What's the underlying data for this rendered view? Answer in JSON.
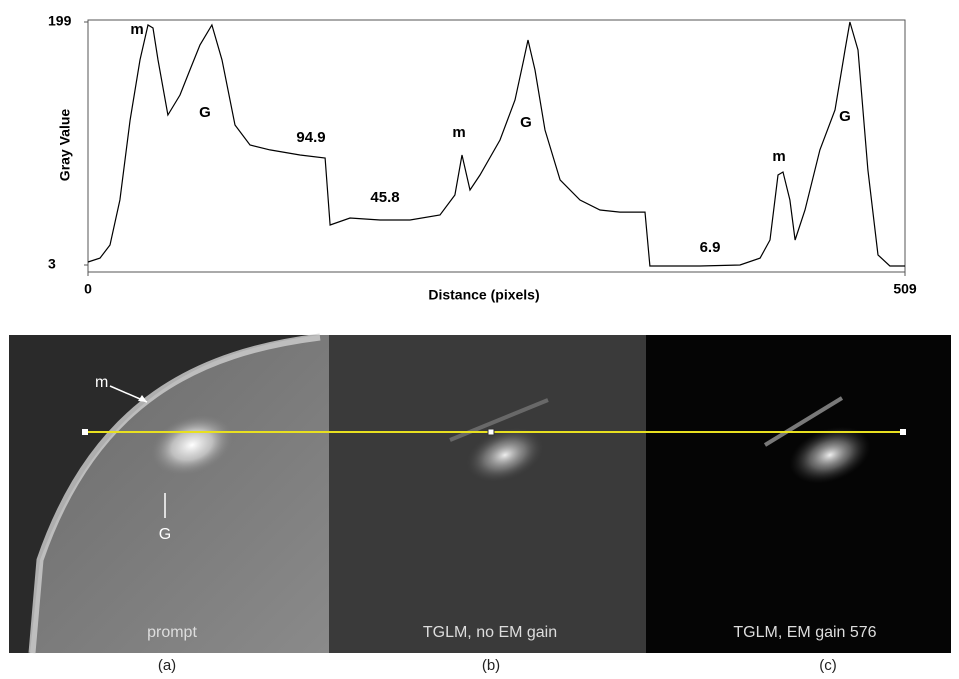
{
  "chart_data": {
    "type": "line",
    "xlabel": "Distance (pixels)",
    "ylabel": "Gray Value",
    "xlim": [
      0,
      509
    ],
    "ylim": [
      3,
      199
    ],
    "xticks": [
      0,
      509
    ],
    "yticks": [
      3,
      199
    ],
    "color": "#000000",
    "x": [
      0,
      7.5,
      13.7,
      19.9,
      26.2,
      32.4,
      37.4,
      40.5,
      43.6,
      49.8,
      57.3,
      63.5,
      69.8,
      77.2,
      83.5,
      91.6,
      100.9,
      113.4,
      132.1,
      147.7,
      150.8,
      163.2,
      181.9,
      200.6,
      219.3,
      228.6,
      233.0,
      238.0,
      244.2,
      256.7,
      266.0,
      274.1,
      278.5,
      284.7,
      294.1,
      306.5,
      319.0,
      331.4,
      347.0,
      350.1,
      381.3,
      406.2,
      418.7,
      424.9,
      429.9,
      433.0,
      437.3,
      440.5,
      446.7,
      456.0,
      465.4,
      471.6,
      474.7,
      479.7,
      485.9,
      492.2,
      499.6,
      509
    ],
    "values": [
      5.4,
      8.6,
      19.1,
      55.4,
      119.9,
      168.4,
      196.6,
      194.2,
      168.4,
      124.0,
      140.1,
      160.3,
      180.5,
      196.6,
      168.4,
      115.9,
      99.8,
      95.8,
      91.7,
      89.3,
      35.3,
      40.9,
      39.3,
      39.3,
      43.3,
      59.5,
      91.7,
      63.5,
      75.6,
      103.8,
      136.1,
      184.5,
      160.3,
      111.9,
      71.6,
      55.4,
      47.4,
      45.7,
      45.7,
      2.2,
      2.2,
      3.0,
      8.6,
      23.2,
      75.6,
      78.0,
      55.4,
      23.2,
      47.4,
      95.8,
      128.0,
      176.4,
      199.0,
      176.4,
      79.6,
      11.1,
      2.2,
      2.2
    ],
    "annotations": [
      "m",
      "G",
      "94.9",
      "45.8",
      "m",
      "G",
      "6.9",
      "m",
      "G"
    ]
  },
  "images": {
    "panels": [
      {
        "caption": "prompt",
        "label": "(a)"
      },
      {
        "caption": "TGLM, no EM gain",
        "label": "(b)"
      },
      {
        "caption": "TGLM, EM gain 576",
        "label": "(c)"
      }
    ],
    "markers": [
      "m",
      "G"
    ]
  }
}
